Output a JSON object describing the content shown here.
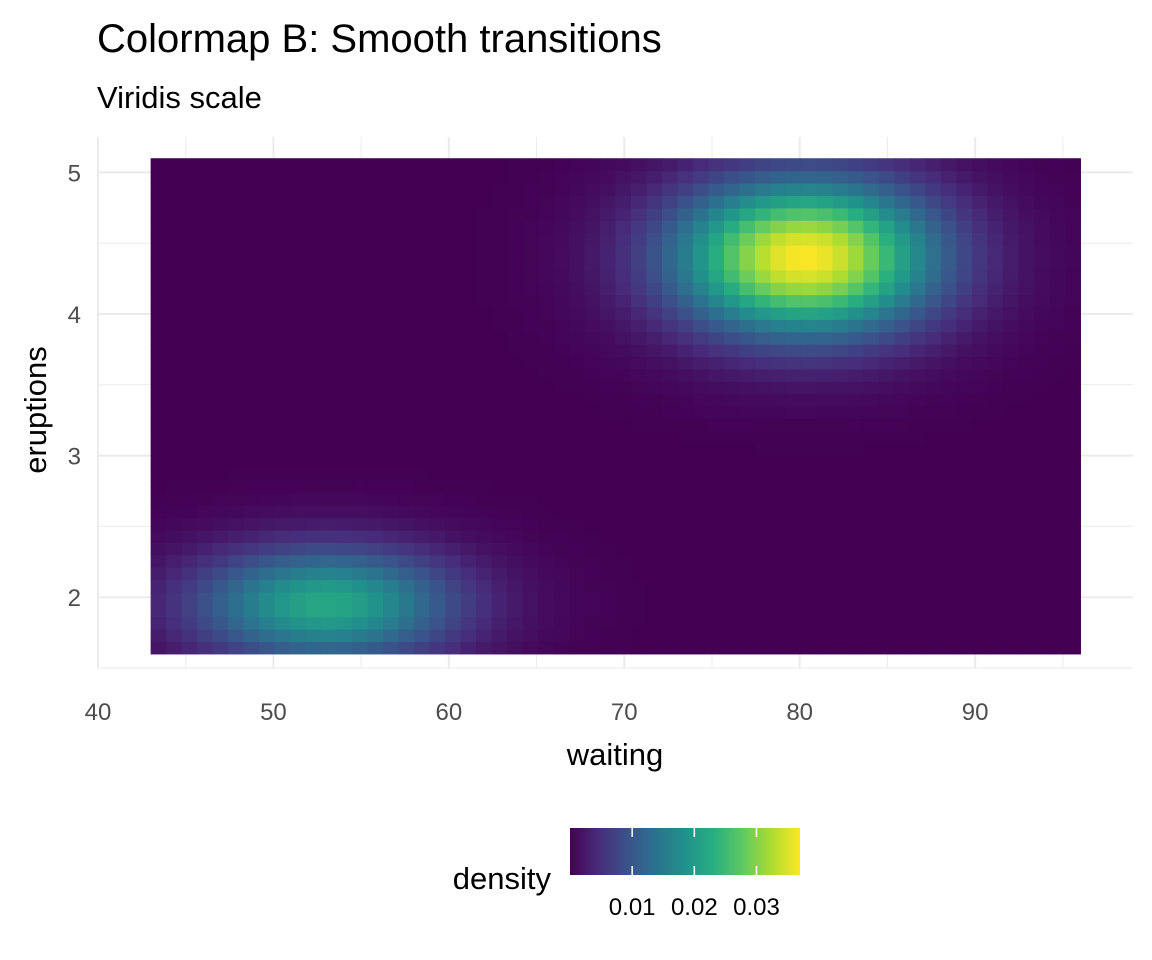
{
  "chart_data": {
    "type": "heatmap",
    "title": "Colormap B: Smooth transitions",
    "subtitle": "Viridis scale",
    "xlabel": "waiting",
    "ylabel": "eruptions",
    "xlim": [
      40,
      99
    ],
    "ylim": [
      1.5,
      5.25
    ],
    "x_ticks": [
      40,
      50,
      60,
      70,
      80,
      90
    ],
    "y_ticks": [
      2,
      3,
      4,
      5
    ],
    "x_tick_labels": [
      "40",
      "50",
      "60",
      "70",
      "80",
      "90"
    ],
    "y_tick_labels": [
      "2",
      "3",
      "4",
      "5"
    ],
    "data_extent": {
      "x": [
        43,
        96
      ],
      "y": [
        1.6,
        5.1
      ]
    },
    "density_peaks": [
      {
        "x": 80.3,
        "y": 4.4,
        "density": 0.037
      },
      {
        "x": 53.0,
        "y": 1.95,
        "density": 0.022
      }
    ],
    "grid": true,
    "colormap": "viridis",
    "legend": {
      "title": "density",
      "position": "bottom",
      "range": [
        0,
        0.037
      ],
      "breaks": [
        0.01,
        0.02,
        0.03
      ],
      "labels": [
        "0.01",
        "0.02",
        "0.03"
      ]
    }
  }
}
